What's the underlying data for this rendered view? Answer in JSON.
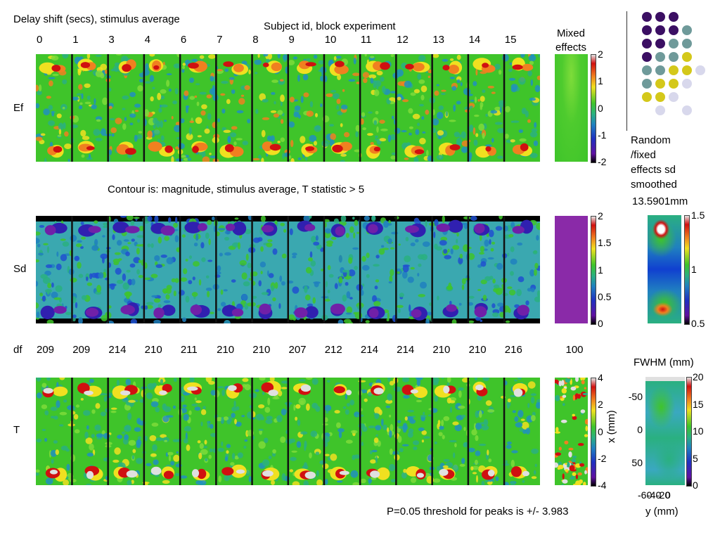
{
  "header": {
    "delay_title": "Delay shift (secs), stimulus average",
    "subject_title": "Subject id, block experiment",
    "mixed_effects_label": "Mixed\neffects",
    "random_fixed_label": "Random\n/fixed\neffects sd\nsmoothed",
    "smoothing_value": "13.5901mm",
    "fwhm_label": "FWHM (mm)"
  },
  "delay_shifts": [
    "0",
    "1",
    "3",
    "4",
    "6",
    "7",
    "8",
    "9",
    "10",
    "11",
    "12",
    "13",
    "14",
    "15"
  ],
  "rows": {
    "ef": "Ef",
    "sd": "Sd",
    "df": "df",
    "t": "T"
  },
  "contour_note": "Contour is: magnitude, stimulus average, T statistic > 5",
  "df_values": [
    "209",
    "209",
    "214",
    "210",
    "211",
    "210",
    "210",
    "207",
    "212",
    "214",
    "214",
    "210",
    "210",
    "216"
  ],
  "df_mixed": "100",
  "threshold_note": "P=0.05 threshold for peaks is +/- 3.983",
  "ef_colorbar_ticks": [
    "2",
    "1",
    "0",
    "-1",
    "-2"
  ],
  "sd_colorbar_ticks": [
    "2",
    "1.5",
    "1",
    "0.5",
    "0"
  ],
  "t_colorbar_ticks": [
    "4",
    "2",
    "0",
    "-2",
    "-4"
  ],
  "rf_colorbar_ticks": [
    "1.5",
    "1",
    "0.5"
  ],
  "fwhm_colorbar_ticks": [
    "20",
    "15",
    "10",
    "5",
    "0"
  ],
  "fwhm_x_label": "x (mm)",
  "fwhm_y_label": "y (mm)",
  "fwhm_x_ticks": [
    "-50",
    "0",
    "50"
  ],
  "fwhm_y_ticks": [
    "-60",
    "-40",
    "-20",
    "0"
  ],
  "legend_colors": {
    "dark": "#3b0f63",
    "teal": "#6f9a9a",
    "yellow": "#d4c81a",
    "lavender": "#d8d8ec"
  },
  "dot_grid": [
    [
      "dark",
      "dark",
      "dark",
      null
    ],
    [
      "dark",
      "dark",
      "dark",
      "teal"
    ],
    [
      "dark",
      "dark",
      "teal",
      "teal"
    ],
    [
      "dark",
      "teal",
      "teal",
      "yellow"
    ],
    [
      "teal",
      "teal",
      "yellow",
      "yellow",
      "lavender"
    ],
    [
      "teal",
      "yellow",
      "yellow",
      "lavender"
    ],
    [
      "yellow",
      "yellow",
      "lavender",
      null
    ],
    [
      null,
      "lavender",
      null,
      "lavender"
    ]
  ]
}
